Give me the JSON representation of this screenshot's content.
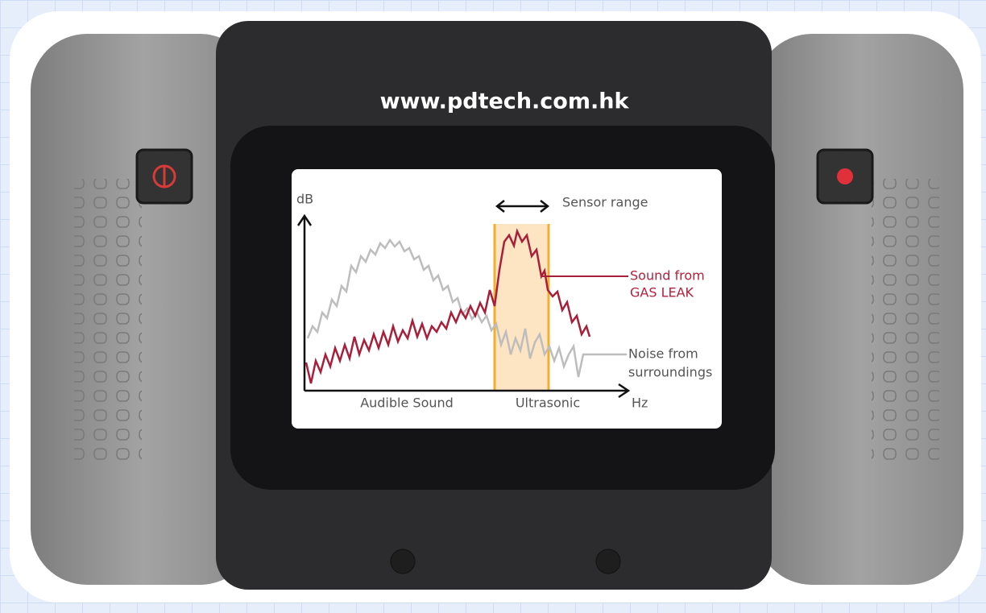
{
  "header": {
    "url": "www.pdtech.com.hk"
  },
  "screen": {
    "y_axis": "dB",
    "x_axis": "Hz",
    "sensor_range": "Sensor range",
    "regions": [
      "Audible Sound",
      "Ultrasonic"
    ],
    "gas_leak": [
      "Sound from",
      "GAS LEAK"
    ],
    "noise": [
      "Noise from",
      "surroundings"
    ]
  }
}
